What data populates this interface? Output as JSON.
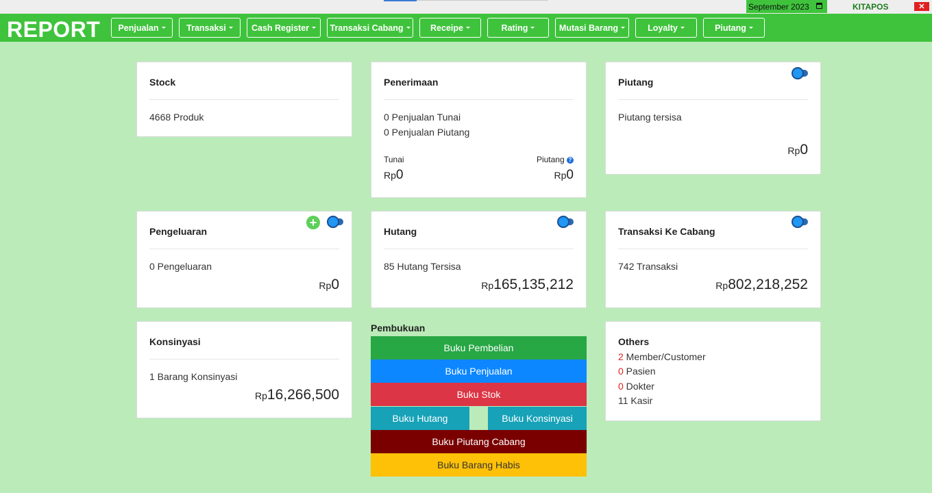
{
  "topbar": {
    "date_value": "September  2023",
    "brand": "KITAPOS",
    "close_label": "✕"
  },
  "nav": {
    "logo": "REPORT",
    "items": [
      {
        "label": "Penjualan"
      },
      {
        "label": "Transaksi"
      },
      {
        "label": "Cash Register"
      },
      {
        "label": "Transaksi Cabang"
      },
      {
        "label": "Receipe"
      },
      {
        "label": "Rating"
      },
      {
        "label": "Mutasi Barang"
      },
      {
        "label": "Loyalty"
      },
      {
        "label": "Piutang"
      }
    ]
  },
  "cards": {
    "stock": {
      "title": "Stock",
      "line1": "4668 Produk"
    },
    "penerimaan": {
      "title": "Penerimaan",
      "line1": "0 Penjualan Tunai",
      "line2": "0 Penjualan Piutang",
      "tunai_label": "Tunai",
      "tunai_currency": "Rp",
      "tunai_value": "0",
      "piutang_label": "Piutang",
      "piutang_help": "?",
      "piutang_currency": "Rp",
      "piutang_value": "0"
    },
    "piutang": {
      "title": "Piutang",
      "line1": "Piutang tersisa",
      "currency": "Rp",
      "value": "0"
    },
    "pengeluaran": {
      "title": "Pengeluaran",
      "line1": "0 Pengeluaran",
      "currency": "Rp",
      "value": "0",
      "add_label": "+"
    },
    "hutang": {
      "title": "Hutang",
      "line1": "85 Hutang Tersisa",
      "currency": "Rp",
      "value": "165,135,212"
    },
    "transaksi_cabang": {
      "title": "Transaksi Ke Cabang",
      "line1": "742 Transaksi",
      "currency": "Rp",
      "value": "802,218,252"
    },
    "konsinyasi": {
      "title": "Konsinyasi",
      "line1": "1 Barang Konsinyasi",
      "currency": "Rp",
      "value": "16,266,500"
    },
    "others": {
      "title": "Others",
      "rows": [
        {
          "count": "2",
          "label": " Member/Customer"
        },
        {
          "count": "0",
          "label": " Pasien"
        },
        {
          "count": "0",
          "label": " Dokter"
        },
        {
          "count": "11",
          "label": " Kasir"
        }
      ]
    }
  },
  "pembukuan": {
    "title": "Pembukuan",
    "buttons": {
      "pembelian": "Buku Pembelian",
      "penjualan": "Buku Penjualan",
      "stok": "Buku Stok",
      "hutang": "Buku Hutang",
      "konsinyasi": "Buku Konsinyasi",
      "piutang_cabang": "Buku Piutang Cabang",
      "barang_habis": "Buku Barang Habis"
    }
  },
  "colors": {
    "page_bg": "#bbebb9",
    "nav_green": "#3fc33c",
    "btn_green": "#28a745",
    "btn_blue": "#0d87ff",
    "btn_red": "#dc3545",
    "btn_teal": "#17a2b8",
    "btn_maroon": "#7a0000",
    "btn_yellow": "#ffc107",
    "toggle_blue": "#2196f3"
  }
}
